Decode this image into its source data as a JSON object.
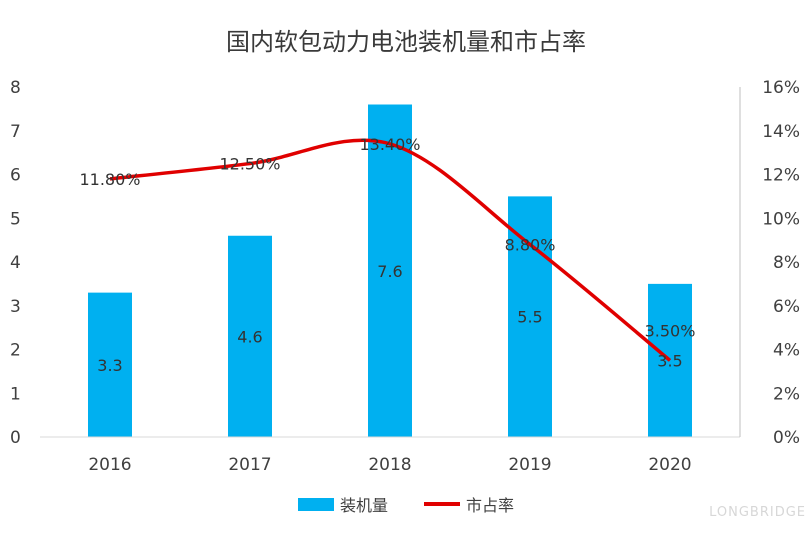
{
  "chart_data": {
    "type": "bar+line",
    "title": "国内软包动力电池装机量和市占率",
    "categories": [
      "2016",
      "2017",
      "2018",
      "2019",
      "2020"
    ],
    "series": [
      {
        "name": "装机量",
        "type": "bar",
        "axis": "left",
        "values": [
          3.3,
          4.6,
          7.6,
          5.5,
          3.5
        ],
        "labels": [
          "3.3",
          "4.6",
          "7.6",
          "5.5",
          "3.5"
        ],
        "color": "#00b0f0"
      },
      {
        "name": "市占率",
        "type": "line",
        "axis": "right",
        "smooth": true,
        "values": [
          11.8,
          12.5,
          13.4,
          8.8,
          3.5
        ],
        "labels": [
          "11.80%",
          "12.50%",
          "13.40%",
          "8.80%",
          "3.50%"
        ],
        "color": "#e00000"
      }
    ],
    "y_left": {
      "min": 0,
      "max": 8,
      "ticks": [
        "0",
        "1",
        "2",
        "3",
        "4",
        "5",
        "6",
        "7",
        "8"
      ]
    },
    "y_right": {
      "min": 0,
      "max": 16,
      "ticks": [
        "0%",
        "2%",
        "4%",
        "6%",
        "8%",
        "10%",
        "12%",
        "14%",
        "16%"
      ]
    },
    "grid": false,
    "legend_position": "bottom"
  },
  "watermark": "LONGBRIDGE"
}
